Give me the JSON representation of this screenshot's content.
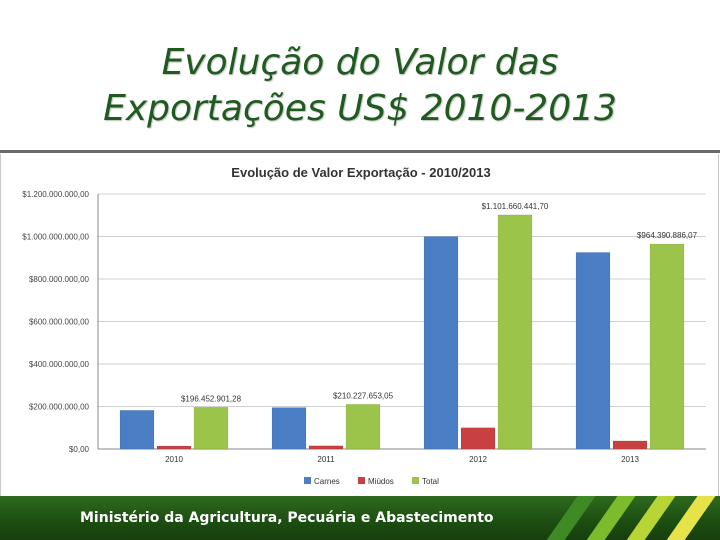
{
  "slide": {
    "title_line1": "Evolução do Valor das",
    "title_line2": "Exportações US$ 2010-2013"
  },
  "footer": {
    "text": "Ministério da Agricultura, Pecuária e Abastecimento"
  },
  "chart_data": {
    "type": "bar",
    "title": "Evolução de Valor Exportação  - 2010/2013",
    "categories": [
      "2010",
      "2011",
      "2012",
      "2013"
    ],
    "series": [
      {
        "name": "Carnes",
        "color": "#4a7fc6",
        "values": [
          182000000,
          195000000,
          1000000000,
          925000000
        ]
      },
      {
        "name": "Miúdos",
        "color": "#c84040",
        "values": [
          14000000,
          15000000,
          100000000,
          38000000
        ]
      },
      {
        "name": "Total",
        "color": "#9bc44a",
        "values": [
          196452901.28,
          210227653.05,
          1101660441.7,
          964390886.07
        ]
      }
    ],
    "data_labels": [
      "$196.452.901,28",
      "$210.227.653,05",
      "$1.101.660.441,70",
      "$964.390.886,07"
    ],
    "ylim": [
      0,
      1200000000
    ],
    "yticks": [
      0,
      200000000,
      400000000,
      600000000,
      800000000,
      1000000000,
      1200000000
    ],
    "ytick_labels": [
      "$0,00",
      "$200.000.000,00",
      "$400.000.000,00",
      "$600.000.000,00",
      "$800.000.000,00",
      "$1.000.000.000,00",
      "$1.200.000.000,00"
    ],
    "grid": true,
    "legend_position": "bottom"
  }
}
